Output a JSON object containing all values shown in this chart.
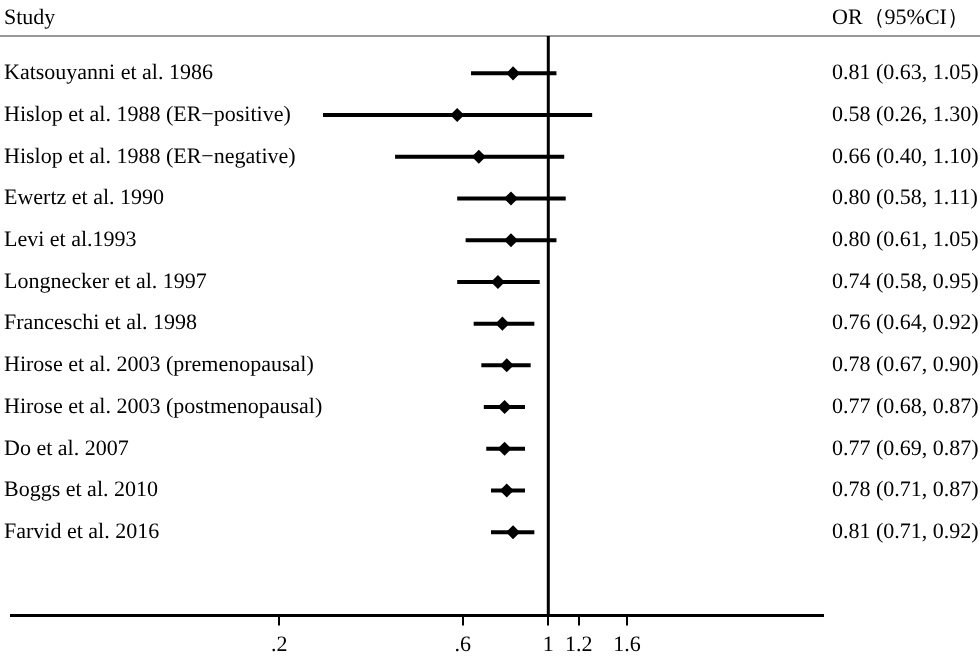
{
  "chart_data": {
    "type": "scatter",
    "orientation": "horizontal",
    "ylabel": "Study",
    "annotations": [
      "OR（95%CI）"
    ],
    "categories": [
      "Katsouyanni et al. 1986",
      "Hislop et al. 1988 (ER−positive)",
      "Hislop et al. 1988 (ER−negative)",
      "Ewertz et al. 1990",
      "Levi et al.1993",
      "Longnecker et al. 1997",
      "Franceschi et al. 1998",
      "Hirose et al. 2003 (premenopausal)",
      "Hirose et al. 2003 (postmenopausal)",
      "Do et al. 2007",
      "Boggs et al. 2010",
      "Farvid et al. 2016"
    ],
    "values": [
      0.81,
      0.58,
      0.66,
      0.8,
      0.8,
      0.74,
      0.76,
      0.78,
      0.77,
      0.77,
      0.78,
      0.81
    ],
    "errors": [
      [
        0.63,
        1.05
      ],
      [
        0.26,
        1.3
      ],
      [
        0.4,
        1.1
      ],
      [
        0.58,
        1.11
      ],
      [
        0.61,
        1.05
      ],
      [
        0.58,
        0.95
      ],
      [
        0.64,
        0.92
      ],
      [
        0.67,
        0.9
      ],
      [
        0.68,
        0.87
      ],
      [
        0.69,
        0.87
      ],
      [
        0.71,
        0.87
      ],
      [
        0.71,
        0.92
      ]
    ],
    "value_labels": [
      "0.81 (0.63, 1.05)",
      "0.58 (0.26, 1.30)",
      "0.66 (0.40, 1.10)",
      "0.80 (0.58, 1.11)",
      "0.80 (0.61, 1.05)",
      "0.74 (0.58, 0.95)",
      "0.76 (0.64, 0.92)",
      "0.78 (0.67, 0.90)",
      "0.77 (0.68, 0.87)",
      "0.77 (0.69, 0.87)",
      "0.78 (0.71, 0.87)",
      "0.81 (0.71, 0.92)"
    ],
    "color": "#000000",
    "marker": "diamond",
    "log": "x",
    "xlim": [
      0.04,
      5.2
    ],
    "xticks": [
      {
        "value": 0.2,
        "label": ".2"
      },
      {
        "value": 0.6,
        "label": ".6"
      },
      1,
      1.2,
      1.6
    ],
    "ref_lines": [
      {
        "axis": "x",
        "value": 1,
        "label": null,
        "color": "#000000"
      }
    ]
  }
}
